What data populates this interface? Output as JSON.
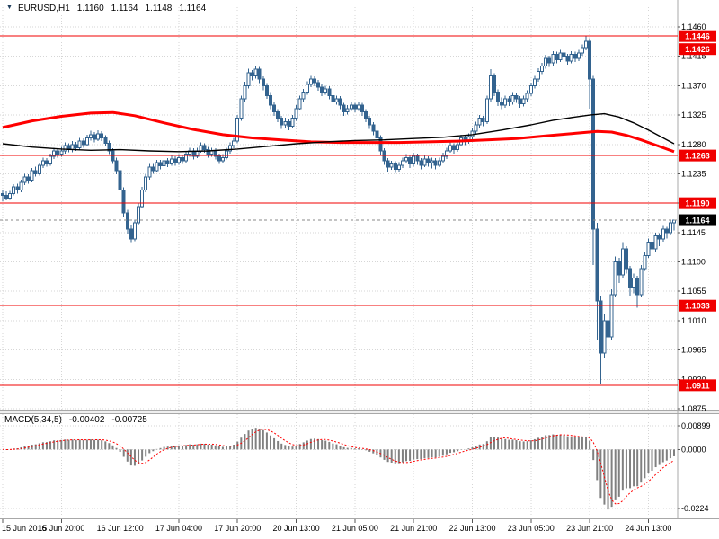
{
  "header": {
    "symbol_period": "EURUSD,H1",
    "open": "1.1160",
    "high": "1.1164",
    "low": "1.1148",
    "close": "1.1164"
  },
  "indicator_label": {
    "name": "MACD(5,34,5)",
    "value": "-0.00402",
    "signal": "-0.00725"
  },
  "colors": {
    "bull": "#ffffff",
    "candle": "#33638f",
    "ma_red": "#ff0000",
    "ma_black": "#000000",
    "hline": "#f00000",
    "grid": "#d6d6d6",
    "text": "#000000",
    "hist": "#808080",
    "signal": "#ff0000"
  },
  "chart_data": {
    "type": "candlestick",
    "title": "EURUSD,H1",
    "symbol": "EURUSD",
    "timeframe": "H1",
    "x_axis": {
      "tick_labels": [
        "15 Jun 2016",
        "15 Jun 20:00",
        "16 Jun 12:00",
        "17 Jun 04:00",
        "17 Jun 20:00",
        "20 Jun 13:00",
        "21 Jun 05:00",
        "21 Jun 21:00",
        "22 Jun 13:00",
        "23 Jun 05:00",
        "23 Jun 21:00",
        "24 Jun 13:00"
      ],
      "tick_indices": [
        0,
        16,
        32,
        48,
        64,
        80,
        96,
        112,
        128,
        144,
        160,
        176
      ]
    },
    "y_axis": {
      "tick_labels": [
        "1.1460",
        "1.1415",
        "1.1370",
        "1.1325",
        "1.1280",
        "1.1235",
        "1.1190",
        "1.1145",
        "1.1100",
        "1.1055",
        "1.1010",
        "1.0965",
        "1.0920",
        "1.0875"
      ],
      "tick_values": [
        1.146,
        1.1415,
        1.137,
        1.1325,
        1.128,
        1.1235,
        1.119,
        1.1145,
        1.11,
        1.1055,
        1.101,
        1.0965,
        1.092,
        1.0875
      ]
    },
    "horizontal_lines": [
      1.1446,
      1.1426,
      1.1263,
      1.119,
      1.1033,
      1.0911
    ],
    "current_price": 1.1164,
    "candles": [
      [
        1.1205,
        1.121,
        1.1193,
        1.1202
      ],
      [
        1.1202,
        1.1208,
        1.1194,
        1.1198
      ],
      [
        1.1198,
        1.1209,
        1.1195,
        1.1205
      ],
      [
        1.1205,
        1.1219,
        1.1202,
        1.1215
      ],
      [
        1.1215,
        1.122,
        1.1205,
        1.121
      ],
      [
        1.121,
        1.1226,
        1.1207,
        1.1222
      ],
      [
        1.1222,
        1.1235,
        1.1218,
        1.123
      ],
      [
        1.123,
        1.1234,
        1.122,
        1.1225
      ],
      [
        1.1225,
        1.1244,
        1.1222,
        1.124
      ],
      [
        1.124,
        1.1246,
        1.1231,
        1.1235
      ],
      [
        1.1235,
        1.1252,
        1.1232,
        1.1248
      ],
      [
        1.1248,
        1.126,
        1.1244,
        1.1255
      ],
      [
        1.1255,
        1.1259,
        1.1246,
        1.125
      ],
      [
        1.125,
        1.1266,
        1.1247,
        1.1262
      ],
      [
        1.1262,
        1.1275,
        1.1258,
        1.127
      ],
      [
        1.127,
        1.1274,
        1.126,
        1.1265
      ],
      [
        1.1265,
        1.1276,
        1.1261,
        1.127
      ],
      [
        1.127,
        1.1283,
        1.1266,
        1.1278
      ],
      [
        1.1278,
        1.1282,
        1.1268,
        1.1272
      ],
      [
        1.1272,
        1.1285,
        1.1268,
        1.128
      ],
      [
        1.128,
        1.1284,
        1.127,
        1.1275
      ],
      [
        1.1275,
        1.129,
        1.1272,
        1.1285
      ],
      [
        1.1285,
        1.1289,
        1.1275,
        1.128
      ],
      [
        1.128,
        1.1295,
        1.1277,
        1.129
      ],
      [
        1.129,
        1.1301,
        1.1286,
        1.1295
      ],
      [
        1.1295,
        1.1299,
        1.1283,
        1.1288
      ],
      [
        1.1288,
        1.1302,
        1.1285,
        1.1296
      ],
      [
        1.1296,
        1.13,
        1.1285,
        1.129
      ],
      [
        1.129,
        1.1294,
        1.1277,
        1.1282
      ],
      [
        1.1282,
        1.1286,
        1.1265,
        1.127
      ],
      [
        1.127,
        1.1274,
        1.125,
        1.1255
      ],
      [
        1.1255,
        1.126,
        1.1234,
        1.124
      ],
      [
        1.124,
        1.1244,
        1.1204,
        1.121
      ],
      [
        1.121,
        1.1214,
        1.1168,
        1.1175
      ],
      [
        1.1175,
        1.118,
        1.1143,
        1.115
      ],
      [
        1.115,
        1.1156,
        1.113,
        1.1135
      ],
      [
        1.1135,
        1.1165,
        1.1132,
        1.116
      ],
      [
        1.116,
        1.119,
        1.1156,
        1.1185
      ],
      [
        1.1185,
        1.1215,
        1.1182,
        1.121
      ],
      [
        1.121,
        1.1235,
        1.1207,
        1.123
      ],
      [
        1.123,
        1.125,
        1.1226,
        1.1245
      ],
      [
        1.1245,
        1.125,
        1.1235,
        1.124
      ],
      [
        1.124,
        1.1256,
        1.1237,
        1.1252
      ],
      [
        1.1252,
        1.1256,
        1.1242,
        1.1247
      ],
      [
        1.1247,
        1.126,
        1.1244,
        1.1255
      ],
      [
        1.1255,
        1.1259,
        1.1245,
        1.125
      ],
      [
        1.125,
        1.1263,
        1.1247,
        1.1258
      ],
      [
        1.1258,
        1.1262,
        1.1247,
        1.1252
      ],
      [
        1.1252,
        1.1265,
        1.1249,
        1.126
      ],
      [
        1.126,
        1.1264,
        1.125,
        1.1255
      ],
      [
        1.1255,
        1.127,
        1.1252,
        1.1265
      ],
      [
        1.1265,
        1.1275,
        1.1261,
        1.127
      ],
      [
        1.127,
        1.1274,
        1.1257,
        1.1262
      ],
      [
        1.1262,
        1.1275,
        1.1259,
        1.127
      ],
      [
        1.127,
        1.1283,
        1.1267,
        1.1278
      ],
      [
        1.1278,
        1.1282,
        1.1267,
        1.1272
      ],
      [
        1.1272,
        1.1276,
        1.126,
        1.1265
      ],
      [
        1.1265,
        1.1275,
        1.1261,
        1.127
      ],
      [
        1.127,
        1.1274,
        1.1257,
        1.1262
      ],
      [
        1.1262,
        1.1266,
        1.125,
        1.1255
      ],
      [
        1.1255,
        1.1265,
        1.1251,
        1.126
      ],
      [
        1.126,
        1.1275,
        1.1257,
        1.127
      ],
      [
        1.127,
        1.1283,
        1.1266,
        1.1278
      ],
      [
        1.1278,
        1.129,
        1.1274,
        1.1285
      ],
      [
        1.1285,
        1.1325,
        1.1282,
        1.132
      ],
      [
        1.132,
        1.1355,
        1.1316,
        1.135
      ],
      [
        1.135,
        1.1376,
        1.1346,
        1.137
      ],
      [
        1.137,
        1.1396,
        1.1366,
        1.139
      ],
      [
        1.139,
        1.1394,
        1.1378,
        1.1385
      ],
      [
        1.1385,
        1.14,
        1.1381,
        1.1395
      ],
      [
        1.1395,
        1.1399,
        1.1374,
        1.138
      ],
      [
        1.138,
        1.1384,
        1.1363,
        1.137
      ],
      [
        1.137,
        1.1374,
        1.135,
        1.1355
      ],
      [
        1.1355,
        1.136,
        1.1334,
        1.134
      ],
      [
        1.134,
        1.1345,
        1.1324,
        1.133
      ],
      [
        1.133,
        1.1334,
        1.1314,
        1.132
      ],
      [
        1.132,
        1.1324,
        1.1304,
        1.131
      ],
      [
        1.131,
        1.1321,
        1.1306,
        1.1315
      ],
      [
        1.1315,
        1.1319,
        1.1302,
        1.1308
      ],
      [
        1.1308,
        1.1325,
        1.1305,
        1.132
      ],
      [
        1.132,
        1.134,
        1.1316,
        1.1335
      ],
      [
        1.1335,
        1.1355,
        1.1332,
        1.135
      ],
      [
        1.135,
        1.1365,
        1.1346,
        1.136
      ],
      [
        1.136,
        1.1377,
        1.1356,
        1.1372
      ],
      [
        1.1372,
        1.1385,
        1.1368,
        1.138
      ],
      [
        1.138,
        1.1384,
        1.1369,
        1.1375
      ],
      [
        1.1375,
        1.1379,
        1.1362,
        1.1368
      ],
      [
        1.1368,
        1.1372,
        1.1354,
        1.136
      ],
      [
        1.136,
        1.137,
        1.1356,
        1.1365
      ],
      [
        1.1365,
        1.1369,
        1.1349,
        1.1355
      ],
      [
        1.1355,
        1.1359,
        1.1339,
        1.1345
      ],
      [
        1.1345,
        1.1355,
        1.1341,
        1.135
      ],
      [
        1.135,
        1.1354,
        1.1334,
        1.134
      ],
      [
        1.134,
        1.1344,
        1.1324,
        1.133
      ],
      [
        1.133,
        1.134,
        1.1326,
        1.1335
      ],
      [
        1.1335,
        1.1345,
        1.1331,
        1.134
      ],
      [
        1.134,
        1.1344,
        1.1329,
        1.1335
      ],
      [
        1.1335,
        1.1345,
        1.1331,
        1.134
      ],
      [
        1.134,
        1.1344,
        1.1324,
        1.133
      ],
      [
        1.133,
        1.1334,
        1.1314,
        1.132
      ],
      [
        1.132,
        1.1324,
        1.1304,
        1.131
      ],
      [
        1.131,
        1.1314,
        1.1294,
        1.13
      ],
      [
        1.13,
        1.1304,
        1.1284,
        1.129
      ],
      [
        1.129,
        1.1294,
        1.1264,
        1.127
      ],
      [
        1.127,
        1.1274,
        1.1249,
        1.1255
      ],
      [
        1.1255,
        1.1259,
        1.1238,
        1.1245
      ],
      [
        1.1245,
        1.1255,
        1.1241,
        1.125
      ],
      [
        1.125,
        1.1254,
        1.1236,
        1.1242
      ],
      [
        1.1242,
        1.1253,
        1.1238,
        1.1248
      ],
      [
        1.1248,
        1.126,
        1.1244,
        1.1255
      ],
      [
        1.1255,
        1.1265,
        1.1251,
        1.126
      ],
      [
        1.126,
        1.1264,
        1.1244,
        1.125
      ],
      [
        1.125,
        1.1267,
        1.1246,
        1.1262
      ],
      [
        1.1262,
        1.1266,
        1.1249,
        1.1255
      ],
      [
        1.1255,
        1.1259,
        1.1242,
        1.1248
      ],
      [
        1.1248,
        1.1263,
        1.1245,
        1.1258
      ],
      [
        1.1258,
        1.1262,
        1.1246,
        1.1252
      ],
      [
        1.1252,
        1.126,
        1.1243,
        1.1255
      ],
      [
        1.1255,
        1.1259,
        1.1242,
        1.1248
      ],
      [
        1.1248,
        1.126,
        1.1245,
        1.1255
      ],
      [
        1.1255,
        1.1267,
        1.1252,
        1.1262
      ],
      [
        1.1262,
        1.1275,
        1.1258,
        1.127
      ],
      [
        1.127,
        1.1283,
        1.1267,
        1.1278
      ],
      [
        1.1278,
        1.1282,
        1.1266,
        1.1272
      ],
      [
        1.1272,
        1.1285,
        1.1269,
        1.128
      ],
      [
        1.128,
        1.1295,
        1.1277,
        1.129
      ],
      [
        1.129,
        1.1294,
        1.1279,
        1.1285
      ],
      [
        1.1285,
        1.1297,
        1.1281,
        1.1292
      ],
      [
        1.1292,
        1.1305,
        1.1288,
        1.13
      ],
      [
        1.13,
        1.1315,
        1.1296,
        1.131
      ],
      [
        1.131,
        1.1325,
        1.1306,
        1.132
      ],
      [
        1.132,
        1.1324,
        1.1308,
        1.1315
      ],
      [
        1.1315,
        1.1355,
        1.1311,
        1.135
      ],
      [
        1.135,
        1.1395,
        1.1346,
        1.1385
      ],
      [
        1.1385,
        1.1389,
        1.1354,
        1.136
      ],
      [
        1.136,
        1.1364,
        1.1339,
        1.1345
      ],
      [
        1.1345,
        1.1352,
        1.1334,
        1.134
      ],
      [
        1.134,
        1.1355,
        1.1336,
        1.135
      ],
      [
        1.135,
        1.1354,
        1.1339,
        1.1345
      ],
      [
        1.1345,
        1.136,
        1.1341,
        1.1355
      ],
      [
        1.1355,
        1.1359,
        1.1344,
        1.135
      ],
      [
        1.135,
        1.1354,
        1.1336,
        1.1342
      ],
      [
        1.1342,
        1.1355,
        1.1338,
        1.135
      ],
      [
        1.135,
        1.1363,
        1.1346,
        1.1358
      ],
      [
        1.1358,
        1.1375,
        1.1354,
        1.137
      ],
      [
        1.137,
        1.1385,
        1.1366,
        1.138
      ],
      [
        1.138,
        1.1397,
        1.1376,
        1.1392
      ],
      [
        1.1392,
        1.1405,
        1.1388,
        1.14
      ],
      [
        1.14,
        1.1417,
        1.1396,
        1.1412
      ],
      [
        1.1412,
        1.1416,
        1.1399,
        1.1405
      ],
      [
        1.1405,
        1.1423,
        1.1401,
        1.1418
      ],
      [
        1.1418,
        1.1422,
        1.1404,
        1.141
      ],
      [
        1.141,
        1.1425,
        1.1406,
        1.142
      ],
      [
        1.142,
        1.1424,
        1.1409,
        1.1415
      ],
      [
        1.1415,
        1.1419,
        1.1402,
        1.1408
      ],
      [
        1.1408,
        1.1423,
        1.1404,
        1.1418
      ],
      [
        1.1418,
        1.1422,
        1.1406,
        1.1412
      ],
      [
        1.1412,
        1.1425,
        1.1408,
        1.142
      ],
      [
        1.142,
        1.1433,
        1.1416,
        1.1428
      ],
      [
        1.1428,
        1.1446,
        1.1424,
        1.1438
      ],
      [
        1.1438,
        1.1443,
        1.1335,
        1.138
      ],
      [
        1.138,
        1.1385,
        1.1095,
        1.115
      ],
      [
        1.115,
        1.116,
        1.098,
        1.104
      ],
      [
        1.104,
        1.1048,
        1.0913,
        1.096
      ],
      [
        1.096,
        1.102,
        1.0952,
        1.101
      ],
      [
        1.101,
        1.1016,
        1.0925,
        1.0985
      ],
      [
        1.0985,
        1.1058,
        1.0981,
        1.105
      ],
      [
        1.105,
        1.1108,
        1.1046,
        1.11
      ],
      [
        1.11,
        1.1106,
        1.1068,
        1.108
      ],
      [
        1.108,
        1.113,
        1.1076,
        1.112
      ],
      [
        1.112,
        1.1124,
        1.1082,
        1.109
      ],
      [
        1.109,
        1.1094,
        1.1048,
        1.106
      ],
      [
        1.106,
        1.1082,
        1.1052,
        1.1075
      ],
      [
        1.1075,
        1.1079,
        1.103,
        1.105
      ],
      [
        1.105,
        1.1095,
        1.1046,
        1.109
      ],
      [
        1.109,
        1.1116,
        1.1086,
        1.111
      ],
      [
        1.111,
        1.1136,
        1.1106,
        1.113
      ],
      [
        1.113,
        1.1134,
        1.111,
        1.112
      ],
      [
        1.112,
        1.1145,
        1.1116,
        1.114
      ],
      [
        1.114,
        1.1144,
        1.1124,
        1.1135
      ],
      [
        1.1135,
        1.1155,
        1.1131,
        1.115
      ],
      [
        1.115,
        1.1154,
        1.1136,
        1.1145
      ],
      [
        1.1145,
        1.1164,
        1.1141,
        1.116
      ],
      [
        1.116,
        1.1164,
        1.1148,
        1.1164
      ]
    ],
    "ma_red_points": [
      [
        0,
        1.1306
      ],
      [
        8,
        1.1316
      ],
      [
        16,
        1.1323
      ],
      [
        24,
        1.1328
      ],
      [
        30,
        1.1329
      ],
      [
        36,
        1.1324
      ],
      [
        44,
        1.1313
      ],
      [
        52,
        1.1303
      ],
      [
        60,
        1.1295
      ],
      [
        68,
        1.129
      ],
      [
        76,
        1.1287
      ],
      [
        84,
        1.1284
      ],
      [
        92,
        1.1283
      ],
      [
        100,
        1.1283
      ],
      [
        108,
        1.1283
      ],
      [
        116,
        1.1284
      ],
      [
        124,
        1.1285
      ],
      [
        132,
        1.1287
      ],
      [
        140,
        1.1289
      ],
      [
        148,
        1.1293
      ],
      [
        156,
        1.1297
      ],
      [
        162,
        1.13
      ],
      [
        166,
        1.1299
      ],
      [
        170,
        1.1294
      ],
      [
        174,
        1.1287
      ],
      [
        178,
        1.1279
      ],
      [
        183,
        1.1269
      ]
    ],
    "ma_black_points": [
      [
        0,
        1.1281
      ],
      [
        8,
        1.1276
      ],
      [
        16,
        1.1273
      ],
      [
        24,
        1.1271
      ],
      [
        32,
        1.1272
      ],
      [
        40,
        1.127
      ],
      [
        48,
        1.1269
      ],
      [
        56,
        1.127
      ],
      [
        64,
        1.1273
      ],
      [
        72,
        1.1277
      ],
      [
        80,
        1.1281
      ],
      [
        88,
        1.1284
      ],
      [
        96,
        1.1286
      ],
      [
        104,
        1.1287
      ],
      [
        112,
        1.1289
      ],
      [
        120,
        1.1291
      ],
      [
        128,
        1.1295
      ],
      [
        136,
        1.1302
      ],
      [
        144,
        1.131
      ],
      [
        150,
        1.1317
      ],
      [
        156,
        1.1322
      ],
      [
        160,
        1.1325
      ],
      [
        164,
        1.1327
      ],
      [
        168,
        1.1322
      ],
      [
        172,
        1.1313
      ],
      [
        176,
        1.1302
      ],
      [
        180,
        1.129
      ],
      [
        183,
        1.1281
      ]
    ],
    "indicator": {
      "name": "MACD",
      "params": "5,34,5",
      "value": -0.00402,
      "signal_value": -0.00725,
      "axis_ticks": [
        "0.00899",
        "0.0000",
        "-0.0224"
      ],
      "axis_values": [
        0.00899,
        0,
        -0.0224
      ]
    }
  }
}
